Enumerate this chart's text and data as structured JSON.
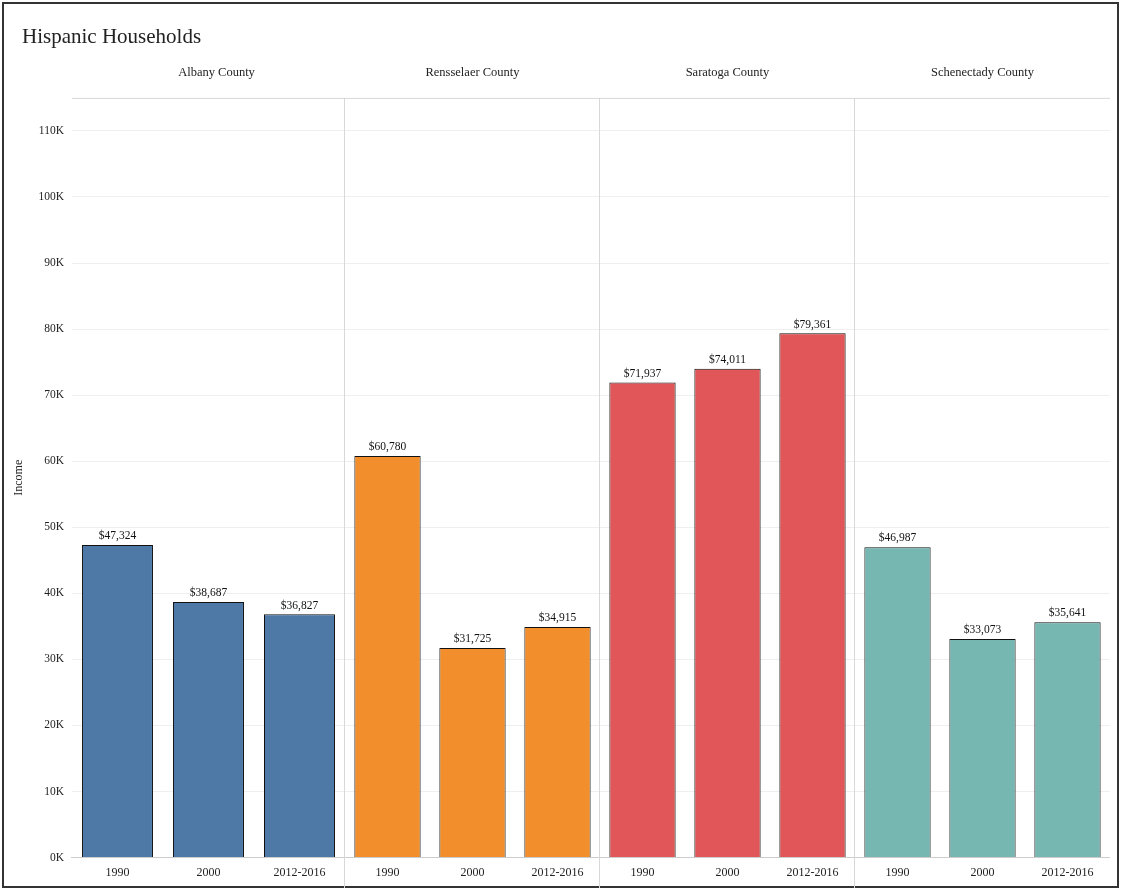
{
  "chart_data": [
    {
      "type": "bar",
      "title": "Hispanic Households",
      "subtitle": "Albany County",
      "ylabel": "Income",
      "categories": [
        "1990",
        "2000",
        "2012-2016"
      ],
      "values": [
        47324,
        38687,
        36827
      ],
      "color": "#4e79a7",
      "value_labels": [
        "$47,324",
        "$38,687",
        "$36,827"
      ],
      "ylim": [
        0,
        115000
      ],
      "yticks": [
        {
          "value": 0,
          "label": "0K"
        },
        {
          "value": 10000,
          "label": "10K"
        },
        {
          "value": 20000,
          "label": "20K"
        },
        {
          "value": 30000,
          "label": "30K"
        },
        {
          "value": 40000,
          "label": "40K"
        },
        {
          "value": 50000,
          "label": "50K"
        },
        {
          "value": 60000,
          "label": "60K"
        },
        {
          "value": 70000,
          "label": "70K"
        },
        {
          "value": 80000,
          "label": "80K"
        },
        {
          "value": 90000,
          "label": "90K"
        },
        {
          "value": 100000,
          "label": "100K"
        },
        {
          "value": 110000,
          "label": "110K"
        }
      ],
      "grid": "y"
    },
    {
      "type": "bar",
      "subtitle": "Rensselaer County",
      "categories": [
        "1990",
        "2000",
        "2012-2016"
      ],
      "values": [
        60780,
        31725,
        34915
      ],
      "color": "#f28e2b",
      "value_labels": [
        "$60,780",
        "$31,725",
        "$34,915"
      ],
      "ylim": [
        0,
        115000
      ],
      "tick_labels": "x",
      "grid": "y"
    },
    {
      "type": "bar",
      "subtitle": "Saratoga County",
      "categories": [
        "1990",
        "2000",
        "2012-2016"
      ],
      "values": [
        71937,
        74011,
        79361
      ],
      "color": "#e15759",
      "value_labels": [
        "$71,937",
        "$74,011",
        "$79,361"
      ],
      "ylim": [
        0,
        115000
      ],
      "tick_labels": "x",
      "grid": "y"
    },
    {
      "type": "bar",
      "subtitle": "Schenectady County",
      "categories": [
        "1990",
        "2000",
        "2012-2016"
      ],
      "values": [
        46987,
        33073,
        35641
      ],
      "color": "#76b7b2",
      "value_labels": [
        "$46,987",
        "$33,073",
        "$35,641"
      ],
      "ylim": [
        0,
        115000
      ],
      "tick_labels": "x",
      "grid": "y"
    }
  ]
}
